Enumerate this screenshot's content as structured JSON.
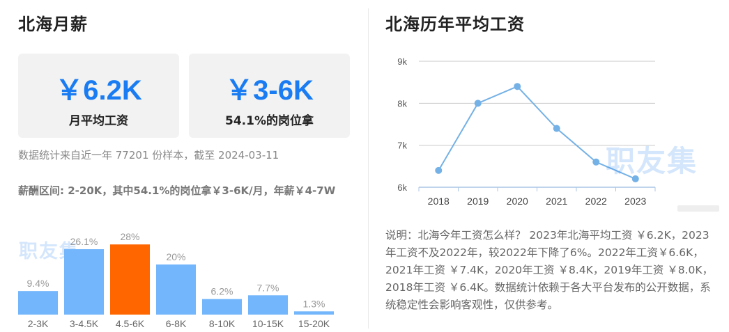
{
  "left": {
    "title": "北海月薪",
    "stats": [
      {
        "value": "￥6.2K",
        "label": "月平均工资"
      },
      {
        "value": "￥3-6K",
        "label": "54.1%的岗位拿"
      }
    ],
    "source_note": "数据统计来自近一年 77201 份样本，截至 2024-03-11",
    "range_summary": "薪酬区间: 2-20K，其中54.1%的岗位拿￥3-6K/月，年薪￥4-7W",
    "watermark": "职友集"
  },
  "right": {
    "title": "北海历年平均工资",
    "watermark": "职友集",
    "description": "说明：北海今年工资怎么样？ 2023年北海平均工资 ￥6.2K，2023年工资不及2022年，较2022年下降了6%。2022年工资￥6.6K，2021年工资 ￥7.4K，2020年工资 ￥8.4K，2019年工资 ￥8.0K，2018年工资 ￥6.4K。数据统计依赖于各大平台发布的公开数据，系统稳定性会影响客观性，仅供参考。"
  },
  "chart_data": [
    {
      "type": "bar",
      "categories": [
        "2-3K",
        "3-4.5K",
        "4.5-6K",
        "6-8K",
        "8-10K",
        "10-15K",
        "15-20K"
      ],
      "values": [
        9.4,
        26.1,
        28,
        20,
        6.2,
        7.7,
        1.3
      ],
      "labels": [
        "9.4%",
        "26.1%",
        "28%",
        "20%",
        "6.2%",
        "7.7%",
        "1.3%"
      ],
      "highlight_index": 2,
      "colors": {
        "bar": "#73b6fb",
        "highlight": "#ff6600",
        "label": "#999999"
      }
    },
    {
      "type": "line",
      "x": [
        "2018",
        "2019",
        "2020",
        "2021",
        "2022",
        "2023"
      ],
      "values": [
        6.4,
        8.0,
        8.4,
        7.4,
        6.6,
        6.2
      ],
      "yticks": [
        "6k",
        "7k",
        "8k",
        "9k"
      ],
      "ylim": [
        6,
        9
      ],
      "grid": true,
      "colors": {
        "line": "#74b1e6",
        "grid": "#c8c8c8"
      }
    }
  ]
}
